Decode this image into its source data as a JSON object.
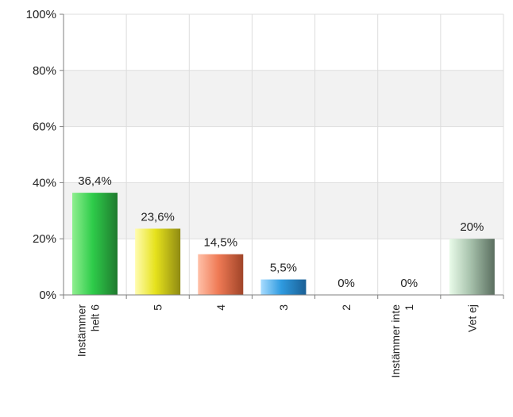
{
  "chart_data": {
    "type": "bar",
    "categories": [
      [
        "Instämmer",
        "helt 6"
      ],
      [
        "5"
      ],
      [
        "4"
      ],
      [
        "3"
      ],
      [
        "2"
      ],
      [
        "Instämmer inte",
        "1"
      ],
      [
        "Vet ej"
      ]
    ],
    "values": [
      36.4,
      23.6,
      14.5,
      5.5,
      0,
      0,
      20
    ],
    "data_labels": [
      "36,4%",
      "23,6%",
      "14,5%",
      "5,5%",
      "0%",
      "0%",
      "20%"
    ],
    "bar_colors": [
      [
        "#8fef8f",
        "#2ecc4a",
        "#1f7a2e"
      ],
      [
        "#fffcb0",
        "#e6e21c",
        "#8f8a12"
      ],
      [
        "#ffc0a8",
        "#ef7a55",
        "#a04428"
      ],
      [
        "#a8dcff",
        "#2f9be0",
        "#1a5f95"
      ],
      [
        "#cccccc",
        "#999999",
        "#666666"
      ],
      [
        "#cccccc",
        "#999999",
        "#666666"
      ],
      [
        "#e9fbe9",
        "#a9c4ae",
        "#5a6e5f"
      ]
    ],
    "ylim": [
      0,
      100
    ],
    "yticks": [
      0,
      20,
      40,
      60,
      80,
      100
    ],
    "ytick_labels": [
      "0%",
      "20%",
      "40%",
      "60%",
      "80%",
      "100%"
    ],
    "title": "",
    "xlabel": "",
    "ylabel": "",
    "grid": true,
    "band_colors": [
      "#ffffff",
      "#f2f2f2"
    ],
    "gridline_color": "#dddddd"
  }
}
